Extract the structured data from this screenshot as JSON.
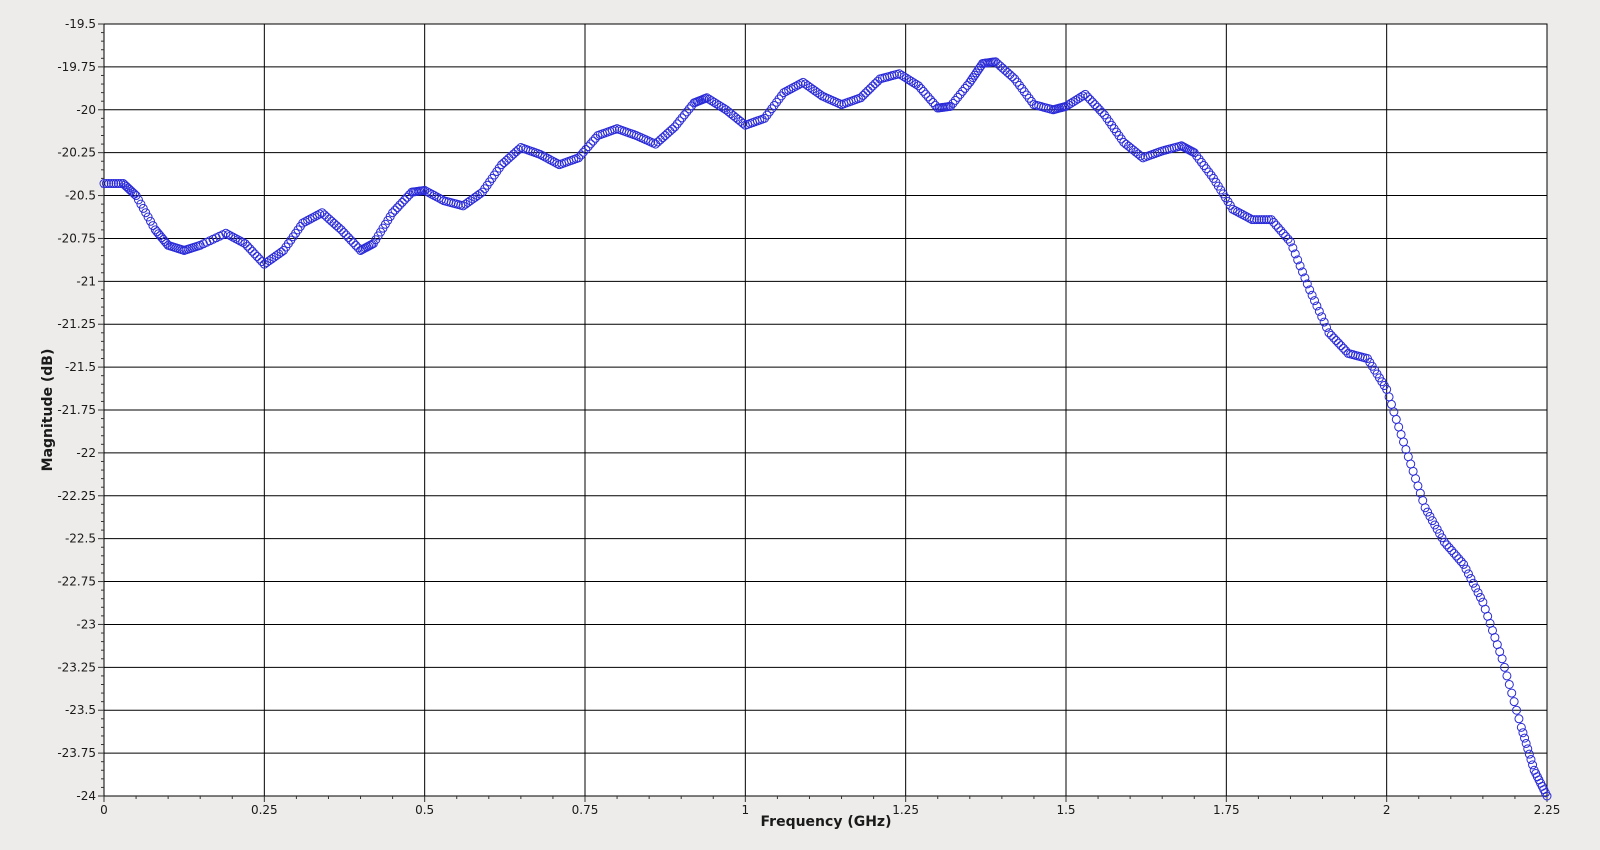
{
  "chart_data": {
    "type": "scatter",
    "title": "",
    "xlabel": "Frequency (GHz)",
    "ylabel": "Magnitude (dB)",
    "xlim": [
      0,
      2.25
    ],
    "ylim": [
      -24,
      -19.5
    ],
    "x_ticks": [
      0,
      0.25,
      0.5,
      0.75,
      1,
      1.25,
      1.5,
      1.75,
      2,
      2.25
    ],
    "x_tick_labels": [
      "0",
      "0.25",
      "0.5",
      "0.75",
      "1",
      "1.25",
      "1.5",
      "1.75",
      "2",
      "2.25"
    ],
    "y_ticks": [
      -19.5,
      -19.75,
      -20,
      -20.25,
      -20.5,
      -20.75,
      -21,
      -21.25,
      -21.5,
      -21.75,
      -22,
      -22.25,
      -22.5,
      -22.75,
      -23,
      -23.25,
      -23.5,
      -23.75,
      -24
    ],
    "y_tick_labels": [
      "-19.5",
      "-19.75",
      "-20",
      "-20.25",
      "-20.5",
      "-20.75",
      "-21",
      "-21.25",
      "-21.5",
      "-21.75",
      "-22",
      "-22.25",
      "-22.5",
      "-22.75",
      "-23",
      "-23.25",
      "-23.5",
      "-23.75",
      "-24"
    ],
    "grid": true,
    "marker": "circle",
    "series": [
      {
        "color": "#2b2bd8",
        "x": [
          0,
          0.03,
          0.05,
          0.08,
          0.1,
          0.125,
          0.15,
          0.19,
          0.22,
          0.25,
          0.28,
          0.31,
          0.34,
          0.37,
          0.4,
          0.42,
          0.45,
          0.48,
          0.5,
          0.53,
          0.56,
          0.59,
          0.62,
          0.65,
          0.68,
          0.71,
          0.74,
          0.77,
          0.8,
          0.83,
          0.86,
          0.89,
          0.92,
          0.94,
          0.97,
          1.0,
          1.03,
          1.06,
          1.09,
          1.12,
          1.15,
          1.18,
          1.21,
          1.24,
          1.27,
          1.3,
          1.32,
          1.35,
          1.37,
          1.39,
          1.42,
          1.45,
          1.48,
          1.5,
          1.53,
          1.56,
          1.59,
          1.62,
          1.65,
          1.68,
          1.7,
          1.73,
          1.76,
          1.79,
          1.82,
          1.85,
          1.88,
          1.91,
          1.94,
          1.97,
          2.0,
          2.03,
          2.06,
          2.09,
          2.12,
          2.15,
          2.18,
          2.21,
          2.23,
          2.25
        ],
        "y": [
          -20.43,
          -20.43,
          -20.5,
          -20.7,
          -20.79,
          -20.82,
          -20.79,
          -20.72,
          -20.78,
          -20.9,
          -20.82,
          -20.66,
          -20.6,
          -20.7,
          -20.82,
          -20.78,
          -20.6,
          -20.48,
          -20.47,
          -20.53,
          -20.56,
          -20.48,
          -20.32,
          -20.22,
          -20.26,
          -20.32,
          -20.28,
          -20.15,
          -20.11,
          -20.15,
          -20.2,
          -20.1,
          -19.96,
          -19.93,
          -20.0,
          -20.09,
          -20.05,
          -19.9,
          -19.84,
          -19.92,
          -19.97,
          -19.93,
          -19.82,
          -19.79,
          -19.86,
          -19.99,
          -19.98,
          -19.84,
          -19.73,
          -19.72,
          -19.82,
          -19.97,
          -20.0,
          -19.98,
          -19.91,
          -20.03,
          -20.19,
          -20.28,
          -20.24,
          -20.21,
          -20.25,
          -20.4,
          -20.58,
          -20.64,
          -20.64,
          -20.77,
          -21.05,
          -21.3,
          -21.42,
          -21.45,
          -21.63,
          -21.98,
          -22.32,
          -22.52,
          -22.65,
          -22.87,
          -23.2,
          -23.6,
          -23.85,
          -24.0
        ]
      }
    ]
  }
}
